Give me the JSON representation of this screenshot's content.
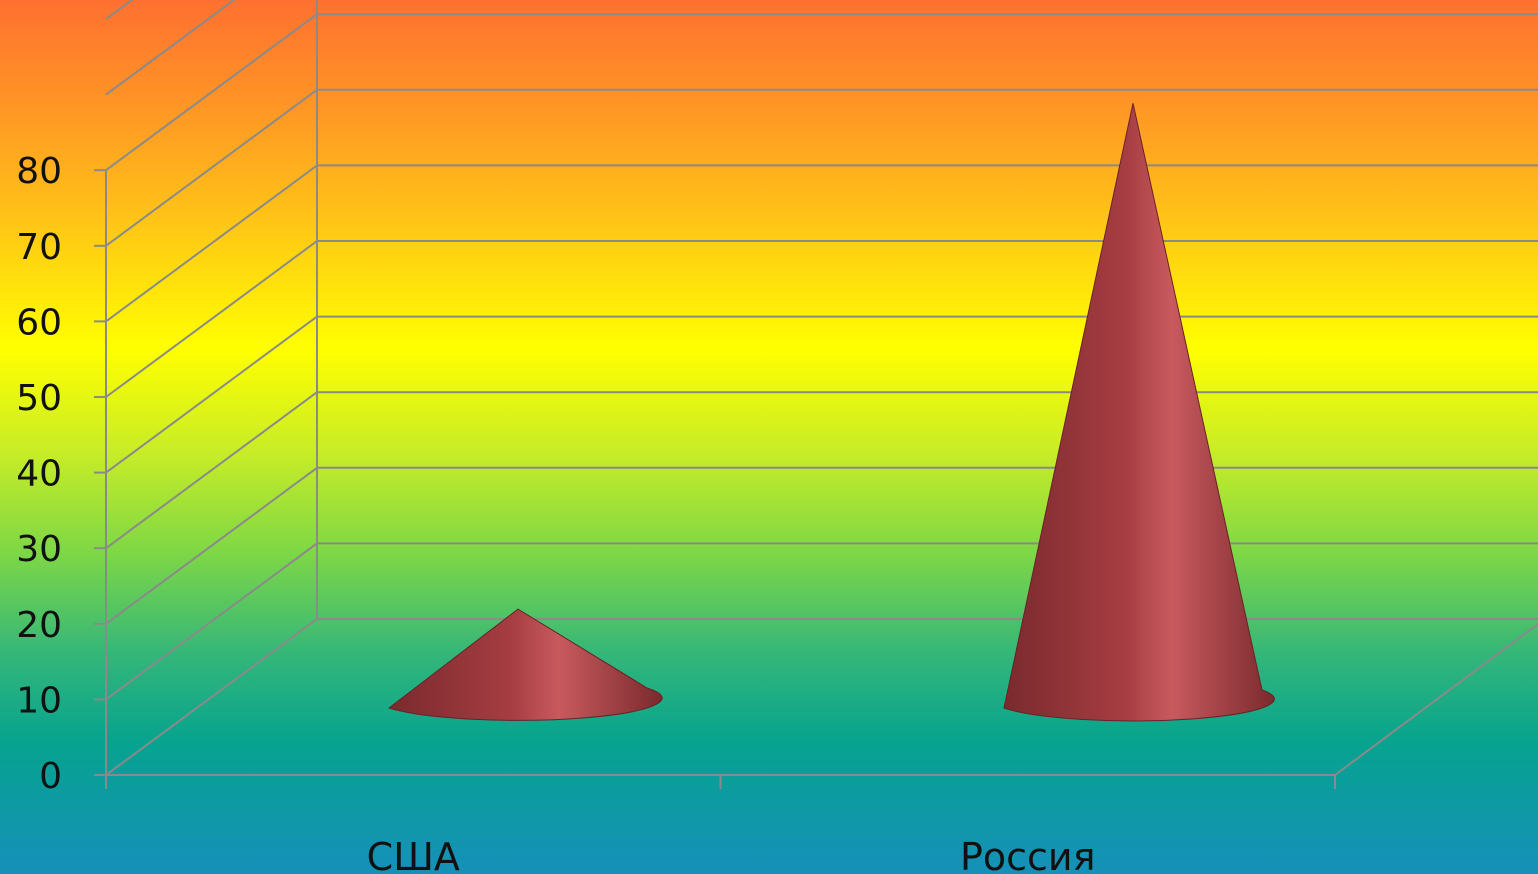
{
  "chart_data": {
    "type": "bar",
    "shape": "cone",
    "three_d": true,
    "categories": [
      "США",
      "Россия"
    ],
    "series": [
      {
        "values": [
          18,
          85
        ]
      }
    ],
    "y_ticks": [
      "0",
      "10",
      "20",
      "30",
      "40",
      "50",
      "60",
      "70",
      "80"
    ],
    "ylim": [
      0,
      100
    ],
    "grid": true,
    "legend": "none",
    "colors": {
      "cone_dark": "#7a2a2e",
      "cone_mid": "#a63d42",
      "cone_light": "#c85a5e",
      "gridline": "#8a8a8a",
      "text": "#111111"
    }
  }
}
